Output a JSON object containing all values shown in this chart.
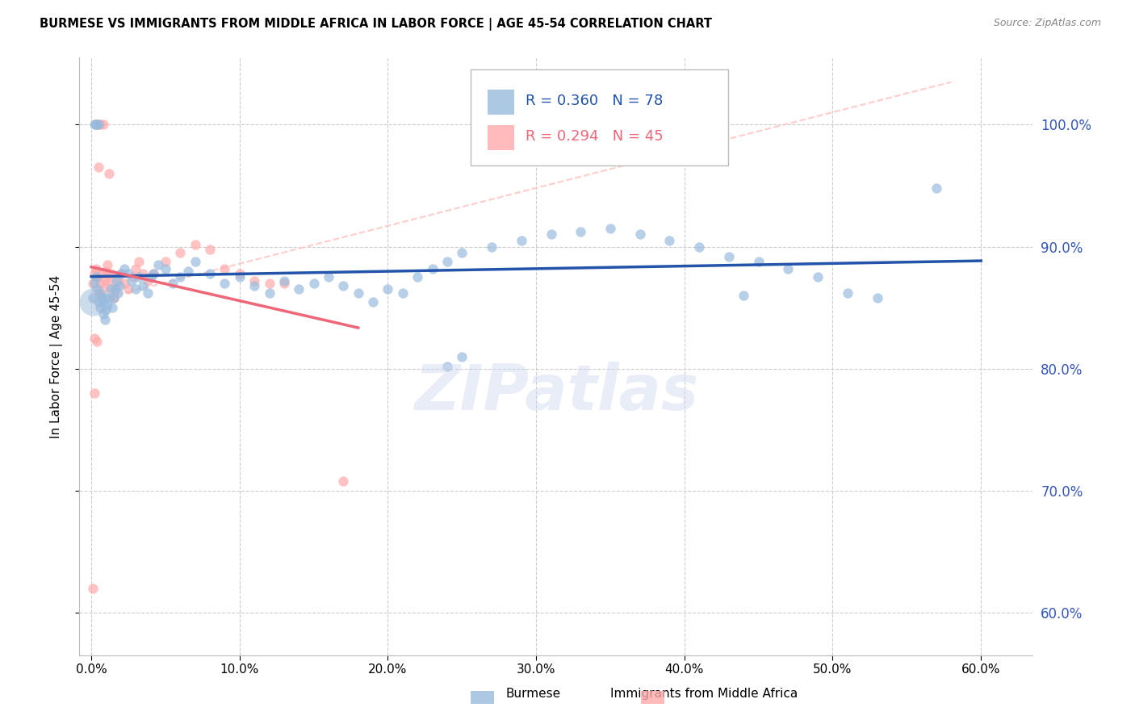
{
  "title": "BURMESE VS IMMIGRANTS FROM MIDDLE AFRICA IN LABOR FORCE | AGE 45-54 CORRELATION CHART",
  "source": "Source: ZipAtlas.com",
  "ylabel": "In Labor Force | Age 45-54",
  "x_tick_values": [
    0.0,
    0.1,
    0.2,
    0.3,
    0.4,
    0.5,
    0.6
  ],
  "y_tick_labels": [
    "60.0%",
    "70.0%",
    "80.0%",
    "90.0%",
    "100.0%"
  ],
  "y_tick_values": [
    0.6,
    0.7,
    0.8,
    0.9,
    1.0
  ],
  "xlim": [
    -0.008,
    0.635
  ],
  "ylim": [
    0.565,
    1.055
  ],
  "blue_color": "#99BBDD",
  "pink_color": "#FFAAAA",
  "blue_line_color": "#2255AA",
  "pink_line_color": "#EE6677",
  "ref_line_color": "#FFCCCC",
  "right_axis_color": "#3355BB",
  "legend_R_blue": "R = 0.360",
  "legend_N_blue": "N = 78",
  "legend_R_pink": "R = 0.294",
  "legend_N_pink": "N = 45",
  "legend_label_blue": "Burmese",
  "legend_label_pink": "Immigrants from Middle Africa",
  "watermark": "ZIPatlas",
  "blue_scatter_size": 80,
  "pink_scatter_size": 80,
  "blue_x": [
    0.001,
    0.002,
    0.003,
    0.004,
    0.005,
    0.006,
    0.006,
    0.007,
    0.008,
    0.008,
    0.009,
    0.01,
    0.01,
    0.011,
    0.012,
    0.013,
    0.014,
    0.015,
    0.016,
    0.017,
    0.018,
    0.019,
    0.02,
    0.022,
    0.025,
    0.027,
    0.03,
    0.032,
    0.035,
    0.038,
    0.04,
    0.042,
    0.045,
    0.05,
    0.055,
    0.06,
    0.065,
    0.07,
    0.08,
    0.09,
    0.1,
    0.11,
    0.12,
    0.13,
    0.14,
    0.15,
    0.16,
    0.17,
    0.18,
    0.19,
    0.2,
    0.21,
    0.22,
    0.23,
    0.24,
    0.25,
    0.27,
    0.29,
    0.31,
    0.33,
    0.35,
    0.37,
    0.39,
    0.41,
    0.43,
    0.45,
    0.47,
    0.49,
    0.51,
    0.53,
    0.002,
    0.003,
    0.004,
    0.005,
    0.44,
    0.57,
    0.24,
    0.25
  ],
  "blue_y": [
    0.858,
    0.87,
    0.875,
    0.865,
    0.855,
    0.85,
    0.862,
    0.858,
    0.845,
    0.855,
    0.84,
    0.848,
    0.858,
    0.852,
    0.858,
    0.865,
    0.85,
    0.858,
    0.865,
    0.872,
    0.862,
    0.868,
    0.878,
    0.882,
    0.878,
    0.872,
    0.865,
    0.875,
    0.868,
    0.862,
    0.875,
    0.878,
    0.885,
    0.882,
    0.87,
    0.875,
    0.88,
    0.888,
    0.878,
    0.87,
    0.875,
    0.868,
    0.862,
    0.872,
    0.865,
    0.87,
    0.875,
    0.868,
    0.862,
    0.855,
    0.865,
    0.862,
    0.875,
    0.882,
    0.888,
    0.895,
    0.9,
    0.905,
    0.91,
    0.912,
    0.915,
    0.91,
    0.905,
    0.9,
    0.892,
    0.888,
    0.882,
    0.875,
    0.862,
    0.858,
    1.0,
    1.0,
    1.0,
    1.0,
    0.86,
    0.948,
    0.802,
    0.81
  ],
  "pink_x": [
    0.001,
    0.002,
    0.003,
    0.004,
    0.005,
    0.006,
    0.007,
    0.008,
    0.009,
    0.01,
    0.011,
    0.012,
    0.013,
    0.014,
    0.015,
    0.016,
    0.018,
    0.02,
    0.022,
    0.025,
    0.028,
    0.03,
    0.032,
    0.035,
    0.038,
    0.042,
    0.05,
    0.06,
    0.07,
    0.08,
    0.09,
    0.1,
    0.11,
    0.12,
    0.003,
    0.006,
    0.008,
    0.005,
    0.13,
    0.002,
    0.004,
    0.002,
    0.001,
    0.012,
    0.17
  ],
  "pink_y": [
    0.87,
    0.878,
    0.882,
    0.875,
    0.862,
    0.87,
    0.878,
    0.865,
    0.872,
    0.88,
    0.885,
    0.872,
    0.878,
    0.865,
    0.858,
    0.865,
    0.872,
    0.878,
    0.87,
    0.865,
    0.875,
    0.882,
    0.888,
    0.878,
    0.872,
    0.878,
    0.888,
    0.895,
    0.902,
    0.898,
    0.882,
    0.878,
    0.872,
    0.87,
    1.0,
    1.0,
    1.0,
    0.965,
    0.87,
    0.825,
    0.822,
    0.78,
    0.62,
    0.96,
    0.708
  ]
}
